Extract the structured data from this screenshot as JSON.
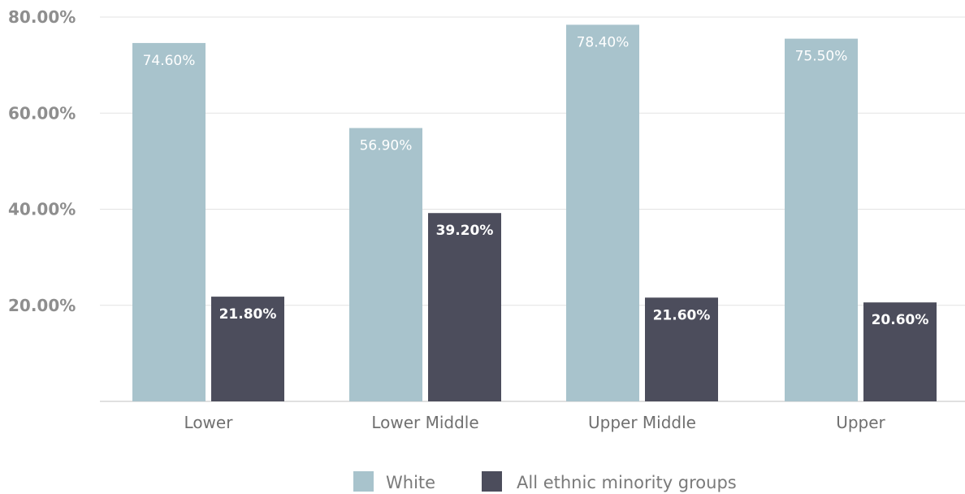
{
  "chart_data": {
    "type": "bar",
    "categories": [
      "Lower",
      "Lower Middle",
      "Upper Middle",
      "Upper"
    ],
    "series": [
      {
        "name": "White",
        "values": [
          74.6,
          56.9,
          78.4,
          75.5
        ],
        "labels": [
          "74.60%",
          "56.90%",
          "78.40%",
          "75.50%"
        ],
        "color": "#a8c3cc",
        "label_color": "#ffffff"
      },
      {
        "name": "All ethnic minority groups",
        "values": [
          21.8,
          39.2,
          21.6,
          20.6
        ],
        "labels": [
          "21.80%",
          "39.20%",
          "21.60%",
          "20.60%"
        ],
        "color": "#4c4d5c",
        "label_color": "#ffffff"
      }
    ],
    "ylim": [
      0,
      80
    ],
    "yticks": [
      {
        "value": 20,
        "label": "20.00%"
      },
      {
        "value": 40,
        "label": "40.00%"
      },
      {
        "value": 60,
        "label": "60.00%"
      },
      {
        "value": 80,
        "label": "80.00%"
      }
    ],
    "xlabel": "",
    "ylabel": "",
    "title": "",
    "grid": true,
    "gridline_color": "#e3e3e3",
    "axis_color": "#d6d6d6",
    "legend_position": "bottom-center"
  }
}
